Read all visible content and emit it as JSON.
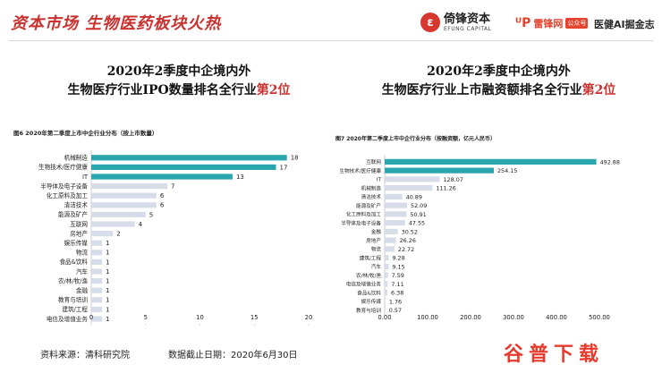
{
  "page": {
    "title": "资本市场 生物医药板块火热",
    "footer_source": "资料来源：清科研究院",
    "footer_date": "数据截止日期：2020年6月30日",
    "watermark": "谷普下载"
  },
  "logos": {
    "efung_mark": "ε",
    "efung_cn": "倚锋资本",
    "efung_en": "EFUNG CAPITAL",
    "leifeng_mark": "ᵁP",
    "leifeng_cn": "雷锋网",
    "leifeng_tag": "公众号",
    "third_cn": "医健AI掘金志"
  },
  "headlines": {
    "left_line1": "2020年2季度中企境内外",
    "left_line2_pre": "生物医疗行业IPO数量排名全行业",
    "left_line2_hl": "第2位",
    "right_line1": "2020年2季度中企境内外",
    "right_line2_pre": "生物医疗行业上市融资额排名全行业",
    "right_line2_hl": "第2位"
  },
  "colors": {
    "accent": "#c9312f",
    "highlight_bar": "#2aa7ae",
    "other_bar": "#d7dde8"
  },
  "chart_data": [
    {
      "type": "bar",
      "orientation": "horizontal",
      "title": "图6 2020年第二季度上市中企行业分布（按上市数量）",
      "categories": [
        "机械制造",
        "生物技术/医疗健康",
        "IT",
        "半导体及电子设备",
        "化工原料及加工",
        "清洁技术",
        "能源及矿产",
        "互联网",
        "房地产",
        "娱乐传媒",
        "物流",
        "食品&饮料",
        "汽车",
        "农/林/牧/渔",
        "金融",
        "教育与培训",
        "建筑/工程",
        "电信及增值业务"
      ],
      "values": [
        18,
        17,
        13,
        7,
        6,
        6,
        5,
        4,
        2,
        1,
        1,
        1,
        1,
        1,
        1,
        1,
        1,
        1
      ],
      "value_labels": [
        "18",
        "17",
        "13",
        "7",
        "6",
        "6",
        "5",
        "4",
        "2",
        "1",
        "1",
        "1",
        "1",
        "1",
        "1",
        "1",
        "1",
        "1"
      ],
      "highlighted": [
        0,
        1,
        2
      ],
      "xlim": [
        0,
        20
      ],
      "xticks": [
        "0",
        "5",
        "10",
        "15",
        "20"
      ]
    },
    {
      "type": "bar",
      "orientation": "horizontal",
      "title": "图7 2020年第二季度上市中企行业分布（按融资额，亿元人民币）",
      "categories": [
        "互联网",
        "生物技术/医疗健康",
        "IT",
        "机械制造",
        "清洁技术",
        "能源及矿产",
        "化工原料及加工",
        "半导体及电子设备",
        "金融",
        "房地产",
        "物流",
        "建筑/工程",
        "汽车",
        "农/林/牧/渔",
        "电信及增值业务",
        "食品&饮料",
        "娱乐传媒",
        "教育与培训"
      ],
      "values": [
        492.88,
        254.15,
        128.07,
        111.26,
        40.89,
        52.09,
        50.91,
        47.55,
        30.52,
        26.26,
        22.72,
        9.28,
        9.15,
        7.59,
        7.11,
        6.38,
        1.76,
        0.57
      ],
      "value_labels": [
        "492.88",
        "254.15",
        "128.07",
        "111.26",
        "40.89",
        "52.09",
        "50.91",
        "47.55",
        "30.52",
        "26.26",
        "22.72",
        "9.28",
        "9.15",
        "7.59",
        "7.11",
        "6.38",
        "1.76",
        "0.57"
      ],
      "highlighted": [
        0,
        1
      ],
      "xlim": [
        0,
        600
      ],
      "xticks": [
        "0.00",
        "100.00",
        "200.00",
        "300.00",
        "400.00",
        "500.00"
      ]
    }
  ]
}
